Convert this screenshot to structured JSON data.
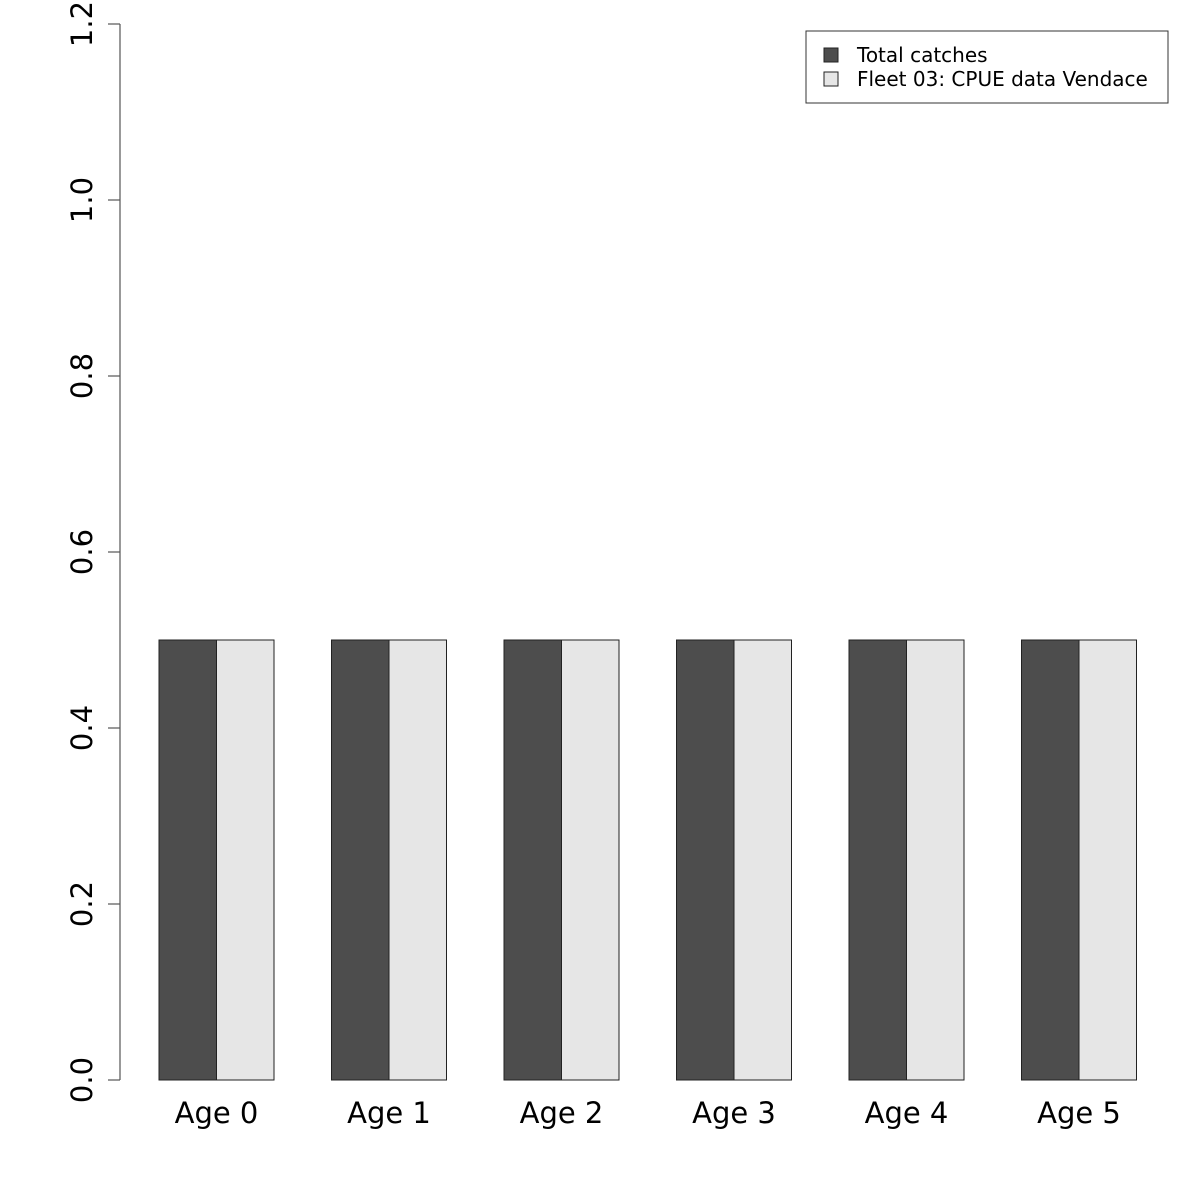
{
  "chart_data": {
    "type": "bar",
    "categories": [
      "Age 0",
      "Age 1",
      "Age 2",
      "Age 3",
      "Age 4",
      "Age 5"
    ],
    "series": [
      {
        "name": "Total catches",
        "values": [
          0.5,
          0.5,
          0.5,
          0.5,
          0.5,
          0.5
        ],
        "color": "#4d4d4d"
      },
      {
        "name": "Fleet 03:  CPUE data Vendace",
        "values": [
          0.5,
          0.5,
          0.5,
          0.5,
          0.5,
          0.5
        ],
        "color": "#e6e6e6"
      }
    ],
    "y_ticks": [
      "0.0",
      "0.2",
      "0.4",
      "0.6",
      "0.8",
      "1.0",
      "1.2"
    ],
    "ylim": [
      0,
      1.2
    ],
    "grid": false,
    "legend_position": "top-right",
    "title": "",
    "xlabel": "",
    "ylabel": ""
  }
}
